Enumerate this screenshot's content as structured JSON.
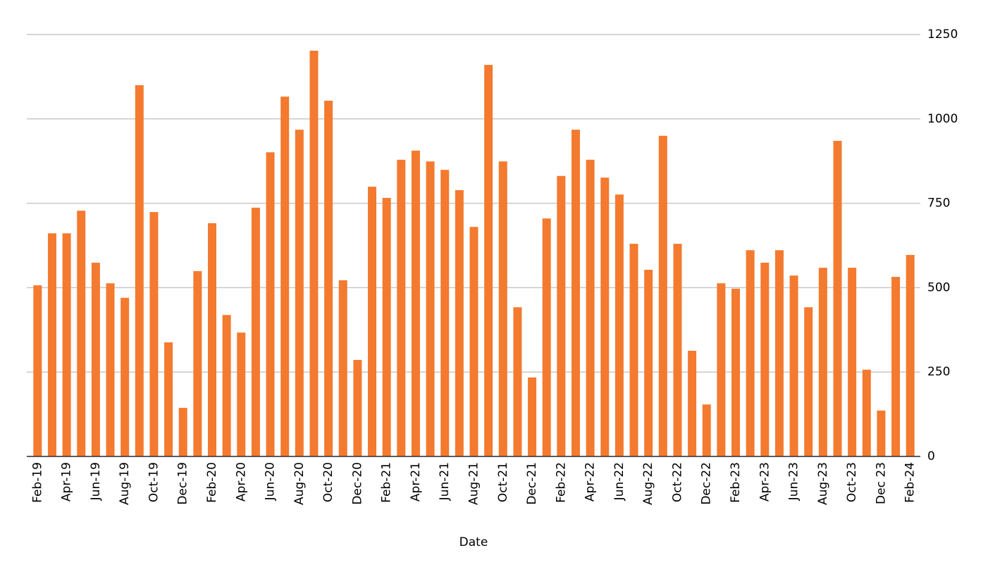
{
  "chart_data": {
    "type": "bar",
    "x_label": "Date",
    "categories": [
      "Feb-19",
      null,
      "Apr-19",
      null,
      "Jun-19",
      null,
      "Aug-19",
      null,
      "Oct-19",
      null,
      "Dec-19",
      null,
      "Feb-20",
      null,
      "Apr-20",
      null,
      "Jun-20",
      null,
      "Aug-20",
      null,
      "Oct-20",
      null,
      "Dec-20",
      null,
      "Feb-21",
      null,
      "Apr-21",
      null,
      "Jun-21",
      null,
      "Aug-21",
      null,
      "Oct-21",
      null,
      "Dec-21",
      null,
      "Feb-22",
      null,
      "Apr-22",
      null,
      "Jun-22",
      null,
      "Aug-22",
      null,
      "Oct-22",
      null,
      "Dec-22",
      null,
      "Feb-23",
      null,
      "Apr-23",
      null,
      "Jun-23",
      null,
      "Aug-23",
      null,
      "Oct-23",
      null,
      "Dec 23",
      null,
      "Feb-24"
    ],
    "values": [
      507,
      661,
      661,
      728,
      574,
      513,
      470,
      1100,
      724,
      338,
      144,
      549,
      691,
      419,
      367,
      737,
      901,
      1066,
      968,
      1202,
      1054,
      522,
      286,
      799,
      766,
      879,
      906,
      874,
      849,
      789,
      680,
      1160,
      874,
      442,
      234,
      705,
      831,
      968,
      879,
      826,
      776,
      630,
      553,
      950,
      630,
      313,
      154,
      513,
      497,
      611,
      574,
      611,
      536,
      442,
      559,
      935,
      559,
      257,
      136,
      532,
      597
    ],
    "color": "#f47a2f",
    "ylim": [
      0,
      1250
    ],
    "yticks": [
      0,
      250,
      500,
      750,
      1000,
      1250
    ],
    "grid": true
  }
}
